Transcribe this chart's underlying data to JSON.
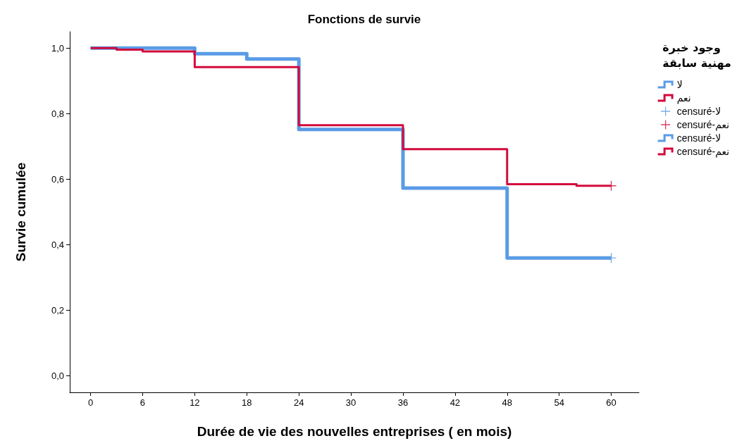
{
  "chart_data": {
    "type": "step",
    "title": "Fonctions de survie",
    "xlabel": "Durée de vie des nouvelles entreprises ( en mois)",
    "ylabel": "Survie cumulée",
    "legend_title": "وجود خبرة مهنية سابقة",
    "legend": "top right",
    "grid": false,
    "xlim": [
      -2.4,
      63.2
    ],
    "xticks": [
      0,
      6,
      12,
      18,
      24,
      30,
      36,
      42,
      48,
      54,
      60
    ],
    "ylim": [
      -0.05,
      1.05
    ],
    "yticks": [
      {
        "value": 0,
        "label": "0,0"
      },
      {
        "value": 0.2,
        "label": "0,2"
      },
      {
        "value": 0.4,
        "label": "0,4"
      },
      {
        "value": 0.6,
        "label": "0,6"
      },
      {
        "value": 0.8,
        "label": "0,8"
      },
      {
        "value": 1,
        "label": "1,0"
      }
    ],
    "series": [
      {
        "name": "لا",
        "color": "#5a9be6",
        "x": [
          0,
          12,
          18,
          24,
          36,
          48,
          60
        ],
        "values": [
          1,
          0.983,
          0.967,
          0.752,
          0.573,
          0.36,
          0.36
        ]
      },
      {
        "name": "نعم",
        "color": "#d20a3c",
        "x": [
          0,
          3,
          6,
          12,
          24,
          36,
          48,
          56,
          60
        ],
        "values": [
          1,
          0.995,
          0.99,
          0.942,
          0.765,
          0.692,
          0.585,
          0.58,
          0.58
        ]
      },
      {
        "name": "censuré-لا",
        "type": "scatter",
        "marker": "cross",
        "color": "#5a9be6",
        "x": [
          60
        ],
        "values": [
          0.36
        ]
      },
      {
        "name": "censuré-نعم",
        "type": "scatter",
        "marker": "cross",
        "color": "#d20a3c",
        "x": [
          60
        ],
        "values": [
          0.58
        ]
      },
      {
        "name": "censuré-لا ",
        "color": "#5a9be6"
      },
      {
        "name": "censuré-نعم ",
        "color": "#d20a3c"
      }
    ]
  }
}
